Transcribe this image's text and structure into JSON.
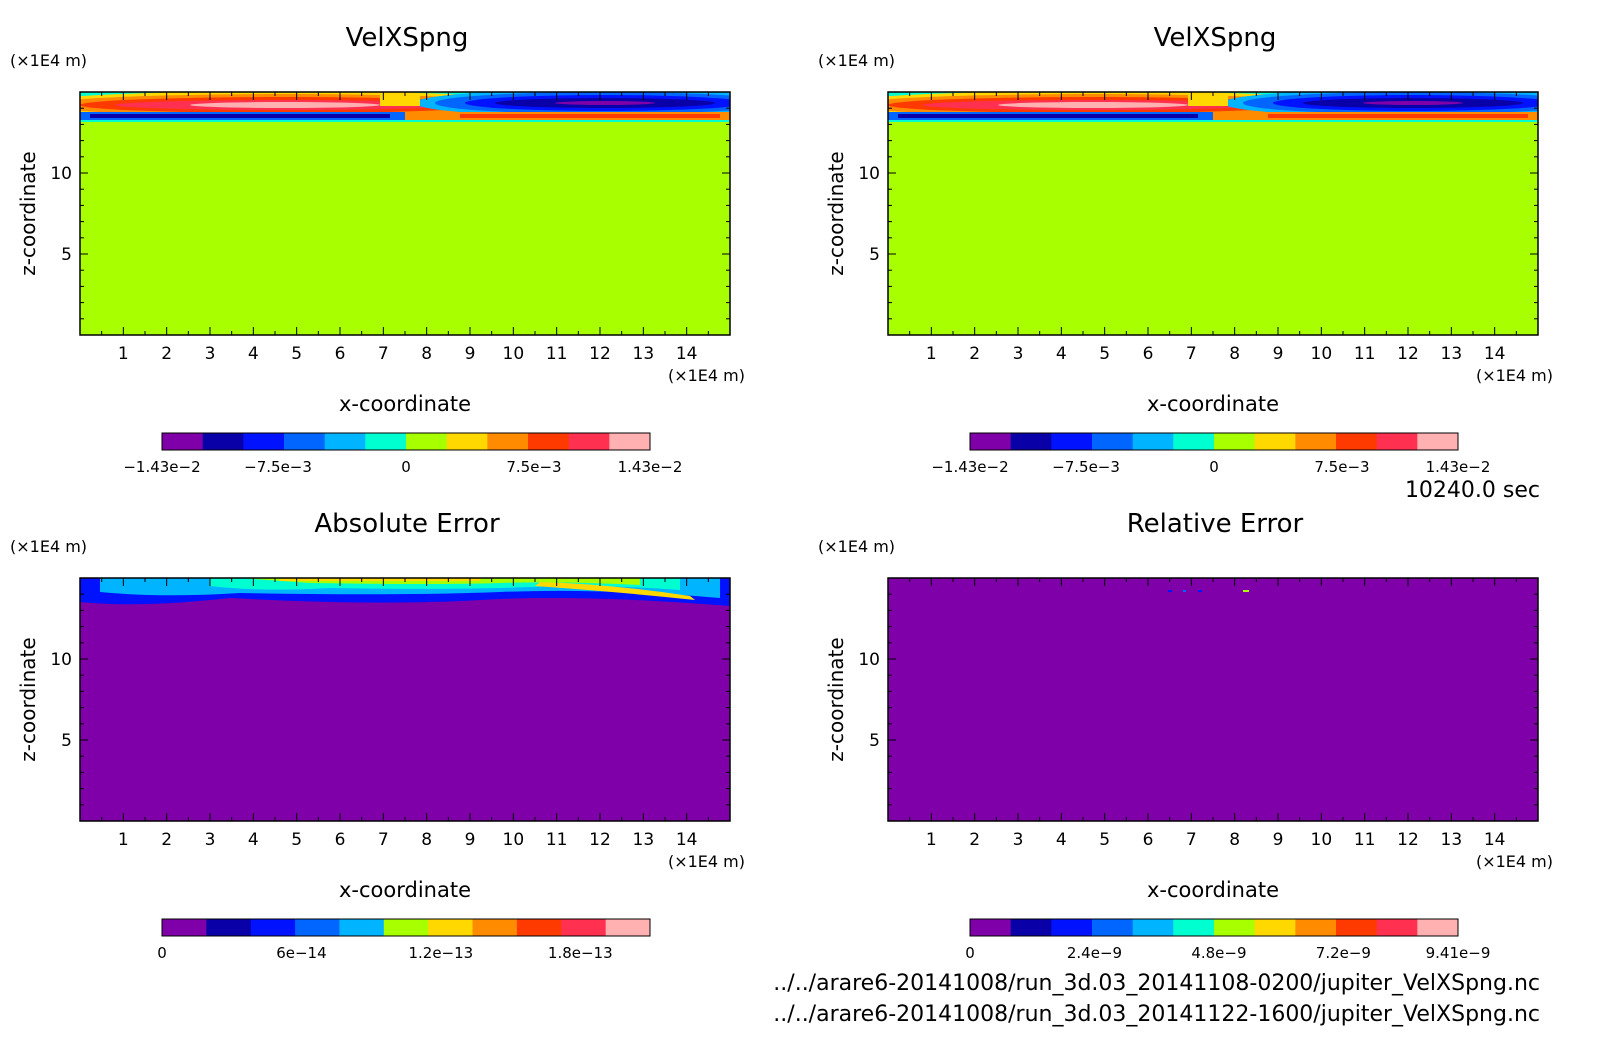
{
  "time_label": "10240.0 sec",
  "files": [
    "../../arare6-20141008/run_3d.03_20141108-0200/jupiter_VelXSpng.nc",
    "../../arare6-20141008/run_3d.03_20141122-1600/jupiter_VelXSpng.nc"
  ],
  "palette": [
    "#7f00a9",
    "#0a00a8",
    "#0012ff",
    "#0066ff",
    "#00b4ff",
    "#00ffd0",
    "#a8ff00",
    "#ffd800",
    "#ff8c00",
    "#ff3a00",
    "#ff3050",
    "#ffb0b0"
  ],
  "chart_data": [
    {
      "type": "heatmap",
      "title": "VelXSpng",
      "xlabel": "x-coordinate",
      "ylabel": "z-coordinate",
      "x_unit": "(×1E4 m)",
      "y_unit": "(×1E4 m)",
      "xlim": [
        0,
        15
      ],
      "ylim": [
        0,
        15
      ],
      "x_ticks": [
        1,
        2,
        3,
        4,
        5,
        6,
        7,
        8,
        9,
        10,
        11,
        12,
        13,
        14
      ],
      "y_ticks": [
        5,
        10
      ],
      "field": "velocity",
      "colorbar_labels": [
        {
          "value": -0.0143,
          "text": "−1.43e−2"
        },
        {
          "value": -0.0075,
          "text": "−7.5e−3"
        },
        {
          "value": 0,
          "text": "0"
        },
        {
          "value": 0.0075,
          "text": "7.5e−3"
        },
        {
          "value": 0.0143,
          "text": "1.43e−2"
        }
      ],
      "colorbar_range": [
        -0.0143,
        0.0143
      ],
      "colorbar_levels": 12
    },
    {
      "type": "heatmap",
      "title": "VelXSpng",
      "xlabel": "x-coordinate",
      "ylabel": "z-coordinate",
      "x_unit": "(×1E4 m)",
      "y_unit": "(×1E4 m)",
      "xlim": [
        0,
        15
      ],
      "ylim": [
        0,
        15
      ],
      "x_ticks": [
        1,
        2,
        3,
        4,
        5,
        6,
        7,
        8,
        9,
        10,
        11,
        12,
        13,
        14
      ],
      "y_ticks": [
        5,
        10
      ],
      "field": "velocity",
      "colorbar_labels": [
        {
          "value": -0.0143,
          "text": "−1.43e−2"
        },
        {
          "value": -0.0075,
          "text": "−7.5e−3"
        },
        {
          "value": 0,
          "text": "0"
        },
        {
          "value": 0.0075,
          "text": "7.5e−3"
        },
        {
          "value": 0.0143,
          "text": "1.43e−2"
        }
      ],
      "colorbar_range": [
        -0.0143,
        0.0143
      ],
      "colorbar_levels": 12
    },
    {
      "type": "heatmap",
      "title": "Absolute Error",
      "xlabel": "x-coordinate",
      "ylabel": "z-coordinate",
      "x_unit": "(×1E4 m)",
      "y_unit": "(×1E4 m)",
      "xlim": [
        0,
        15
      ],
      "ylim": [
        0,
        15
      ],
      "x_ticks": [
        1,
        2,
        3,
        4,
        5,
        6,
        7,
        8,
        9,
        10,
        11,
        12,
        13,
        14
      ],
      "y_ticks": [
        5,
        10
      ],
      "field": "abs_error",
      "colorbar_labels": [
        {
          "value": 0,
          "text": "0"
        },
        {
          "value": 6e-14,
          "text": "6e−14"
        },
        {
          "value": 1.2e-13,
          "text": "1.2e−13"
        },
        {
          "value": 1.8e-13,
          "text": "1.8e−13"
        }
      ],
      "colorbar_range": [
        0,
        2.1e-13
      ],
      "colorbar_levels": 11
    },
    {
      "type": "heatmap",
      "title": "Relative Error",
      "xlabel": "x-coordinate",
      "ylabel": "z-coordinate",
      "x_unit": "(×1E4 m)",
      "y_unit": "(×1E4 m)",
      "xlim": [
        0,
        15
      ],
      "ylim": [
        0,
        15
      ],
      "x_ticks": [
        1,
        2,
        3,
        4,
        5,
        6,
        7,
        8,
        9,
        10,
        11,
        12,
        13,
        14
      ],
      "y_ticks": [
        5,
        10
      ],
      "field": "rel_error",
      "colorbar_labels": [
        {
          "value": 0,
          "text": "0"
        },
        {
          "value": 2.4e-09,
          "text": "2.4e−9"
        },
        {
          "value": 4.8e-09,
          "text": "4.8e−9"
        },
        {
          "value": 7.2e-09,
          "text": "7.2e−9"
        },
        {
          "value": 9.41e-09,
          "text": "9.41e−9"
        }
      ],
      "colorbar_range": [
        0,
        9.41e-09
      ],
      "colorbar_levels": 12
    }
  ]
}
